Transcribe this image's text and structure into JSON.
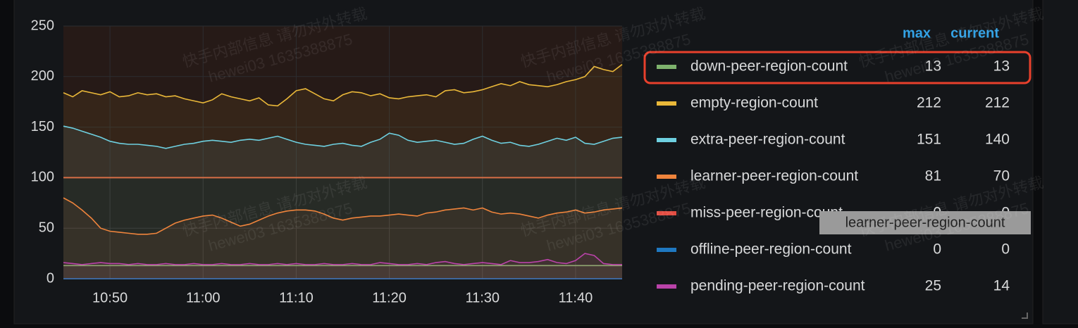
{
  "chart_data": {
    "type": "line",
    "x": [
      "10:45",
      "10:46",
      "10:47",
      "10:48",
      "10:49",
      "10:50",
      "10:51",
      "10:52",
      "10:53",
      "10:54",
      "10:55",
      "10:56",
      "10:57",
      "10:58",
      "10:59",
      "11:00",
      "11:01",
      "11:02",
      "11:03",
      "11:04",
      "11:05",
      "11:06",
      "11:07",
      "11:08",
      "11:09",
      "11:10",
      "11:11",
      "11:12",
      "11:13",
      "11:14",
      "11:15",
      "11:16",
      "11:17",
      "11:18",
      "11:19",
      "11:20",
      "11:21",
      "11:22",
      "11:23",
      "11:24",
      "11:25",
      "11:26",
      "11:27",
      "11:28",
      "11:29",
      "11:30",
      "11:31",
      "11:32",
      "11:33",
      "11:34",
      "11:35",
      "11:36",
      "11:37",
      "11:38",
      "11:39",
      "11:40",
      "11:41",
      "11:42",
      "11:43",
      "11:44",
      "11:45"
    ],
    "xlim": [
      "10:45",
      "11:45"
    ],
    "xticks": [
      "10:50",
      "11:00",
      "11:10",
      "11:20",
      "11:30",
      "11:40"
    ],
    "ylim": [
      0,
      250
    ],
    "yticks": [
      0,
      50,
      100,
      150,
      200,
      250
    ],
    "grid": true,
    "threshold": {
      "value": 100,
      "color": "#e0603a"
    },
    "legend_columns": [
      "max",
      "current"
    ],
    "tooltip": "learner-peer-region-count",
    "watermark": [
      "快手内部信息 请勿对外转载",
      "hewei03 1635388875"
    ],
    "series": [
      {
        "name": "down-peer-region-count",
        "color": "#7eb26d",
        "max": 13,
        "current": 13,
        "values": [
          13,
          13,
          13,
          13,
          13,
          13,
          13,
          13,
          13,
          13,
          13,
          13,
          13,
          13,
          13,
          13,
          13,
          13,
          13,
          13,
          13,
          13,
          13,
          13,
          13,
          13,
          13,
          13,
          13,
          13,
          13,
          13,
          13,
          13,
          13,
          13,
          13,
          13,
          13,
          13,
          13,
          13,
          13,
          13,
          13,
          13,
          13,
          13,
          13,
          13,
          13,
          13,
          13,
          13,
          13,
          13,
          13,
          13,
          13,
          13,
          13
        ]
      },
      {
        "name": "empty-region-count",
        "color": "#eab839",
        "max": 212,
        "current": 212,
        "values": [
          184,
          180,
          186,
          184,
          182,
          185,
          180,
          181,
          184,
          182,
          183,
          180,
          181,
          178,
          176,
          174,
          177,
          183,
          180,
          178,
          176,
          179,
          172,
          171,
          178,
          186,
          188,
          183,
          178,
          176,
          182,
          185,
          184,
          181,
          183,
          179,
          178,
          180,
          181,
          182,
          180,
          186,
          187,
          184,
          185,
          187,
          190,
          193,
          191,
          195,
          192,
          191,
          190,
          192,
          195,
          197,
          200,
          210,
          207,
          205,
          212
        ]
      },
      {
        "name": "extra-peer-region-count",
        "color": "#6ed0e0",
        "max": 151,
        "current": 140,
        "values": [
          151,
          149,
          146,
          143,
          140,
          136,
          134,
          133,
          133,
          132,
          131,
          129,
          131,
          133,
          134,
          136,
          137,
          136,
          135,
          137,
          138,
          137,
          139,
          141,
          138,
          135,
          133,
          132,
          131,
          133,
          134,
          132,
          131,
          135,
          138,
          144,
          142,
          137,
          135,
          136,
          137,
          135,
          133,
          134,
          138,
          141,
          137,
          134,
          135,
          132,
          131,
          133,
          136,
          139,
          137,
          140,
          134,
          133,
          136,
          139,
          140
        ]
      },
      {
        "name": "learner-peer-region-count",
        "color": "#ef843c",
        "max": 81,
        "current": 70,
        "values": [
          80,
          75,
          68,
          60,
          50,
          47,
          46,
          45,
          44,
          44,
          45,
          50,
          55,
          58,
          60,
          62,
          63,
          60,
          56,
          52,
          54,
          58,
          62,
          65,
          67,
          68,
          68,
          67,
          64,
          60,
          58,
          60,
          61,
          62,
          62,
          63,
          64,
          63,
          62,
          65,
          66,
          68,
          69,
          70,
          68,
          70,
          66,
          64,
          65,
          64,
          62,
          60,
          63,
          65,
          66,
          68,
          65,
          66,
          68,
          69,
          70
        ]
      },
      {
        "name": "miss-peer-region-count",
        "color": "#e24d42",
        "max": 0,
        "current": 0,
        "values": [
          0,
          0,
          0,
          0,
          0,
          0,
          0,
          0,
          0,
          0,
          0,
          0,
          0,
          0,
          0,
          0,
          0,
          0,
          0,
          0,
          0,
          0,
          0,
          0,
          0,
          0,
          0,
          0,
          0,
          0,
          0,
          0,
          0,
          0,
          0,
          0,
          0,
          0,
          0,
          0,
          0,
          0,
          0,
          0,
          0,
          0,
          0,
          0,
          0,
          0,
          0,
          0,
          0,
          0,
          0,
          0,
          0,
          0,
          0,
          0,
          0
        ]
      },
      {
        "name": "offline-peer-region-count",
        "color": "#1f78c1",
        "max": 0,
        "current": 0,
        "values": [
          0,
          0,
          0,
          0,
          0,
          0,
          0,
          0,
          0,
          0,
          0,
          0,
          0,
          0,
          0,
          0,
          0,
          0,
          0,
          0,
          0,
          0,
          0,
          0,
          0,
          0,
          0,
          0,
          0,
          0,
          0,
          0,
          0,
          0,
          0,
          0,
          0,
          0,
          0,
          0,
          0,
          0,
          0,
          0,
          0,
          0,
          0,
          0,
          0,
          0,
          0,
          0,
          0,
          0,
          0,
          0,
          0,
          0,
          0,
          0,
          0
        ]
      },
      {
        "name": "pending-peer-region-count",
        "color": "#ba43a9",
        "max": 25,
        "current": 14,
        "values": [
          16,
          15,
          14,
          15,
          16,
          15,
          15,
          14,
          15,
          14,
          14,
          15,
          14,
          14,
          15,
          14,
          14,
          15,
          14,
          14,
          15,
          14,
          14,
          15,
          14,
          15,
          14,
          14,
          15,
          14,
          14,
          15,
          14,
          14,
          16,
          15,
          14,
          14,
          15,
          14,
          16,
          17,
          15,
          14,
          15,
          16,
          15,
          14,
          18,
          16,
          16,
          17,
          19,
          16,
          15,
          18,
          25,
          23,
          15,
          14,
          14
        ]
      }
    ]
  }
}
